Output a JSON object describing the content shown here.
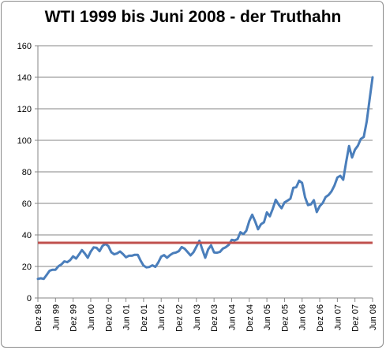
{
  "chart_data": {
    "type": "line",
    "title": "WTI 1999  bis Juni 2008 - der Truthahn",
    "xlabel": "",
    "ylabel": "",
    "ylim": [
      0,
      160
    ],
    "yticks": [
      0,
      20,
      40,
      60,
      80,
      100,
      120,
      140,
      160
    ],
    "grid": true,
    "legend": "none",
    "xtick_labels": [
      "Dez 98",
      "Jun 99",
      "Dez 99",
      "Jun 00",
      "Dez 00",
      "Jun 01",
      "Dez 01",
      "Jun 02",
      "Dez 02",
      "Jun 03",
      "Dez 03",
      "Jun 04",
      "Dez 04",
      "Jun 05",
      "Dez 05",
      "Jun 06",
      "Dez 06",
      "Jun 07",
      "Dez 07",
      "Jun 08"
    ],
    "series": [
      {
        "color": "#4a7ebb",
        "start": "Dez 98",
        "end": "Jun 08",
        "values": [
          12.1,
          12.5,
          12.1,
          14.7,
          17.3,
          17.9,
          17.9,
          20.1,
          21.3,
          23.2,
          22.7,
          24.0,
          26.4,
          25.0,
          27.6,
          30.4,
          28.2,
          25.5,
          29.4,
          32.1,
          31.8,
          29.7,
          33.0,
          34.3,
          32.9,
          29.0,
          27.7,
          28.3,
          29.5,
          27.8,
          25.8,
          26.8,
          26.8,
          27.4,
          27.4,
          23.6,
          20.5,
          19.4,
          19.7,
          20.7,
          19.7,
          22.5,
          26.2,
          27.2,
          25.5,
          27.2,
          28.4,
          28.8,
          29.7,
          32.3,
          31.2,
          29.1,
          27.0,
          29.0,
          32.5,
          36.3,
          30.8,
          25.5,
          30.8,
          33.4,
          28.9,
          28.7,
          29.2,
          31.3,
          32.2,
          33.7,
          36.9,
          36.5,
          37.3,
          41.7,
          40.5,
          42.7,
          48.8,
          52.8,
          48.6,
          43.6,
          46.8,
          48.0,
          54.3,
          51.8,
          56.5,
          62.3,
          59.3,
          56.9,
          60.6,
          61.7,
          63.0,
          69.9,
          70.3,
          74.4,
          73.0,
          63.8,
          58.9,
          59.4,
          62.0,
          54.5,
          58.3,
          60.2,
          64.0,
          65.3,
          67.6,
          71.2,
          76.4,
          77.5,
          75.0,
          86.2,
          96.4,
          89.1,
          94.1,
          96.6,
          100.9,
          102.1,
          112.0,
          126.2,
          140.0
        ]
      },
      {
        "color": "#c0504d",
        "values": [
          35,
          35
        ]
      }
    ]
  }
}
